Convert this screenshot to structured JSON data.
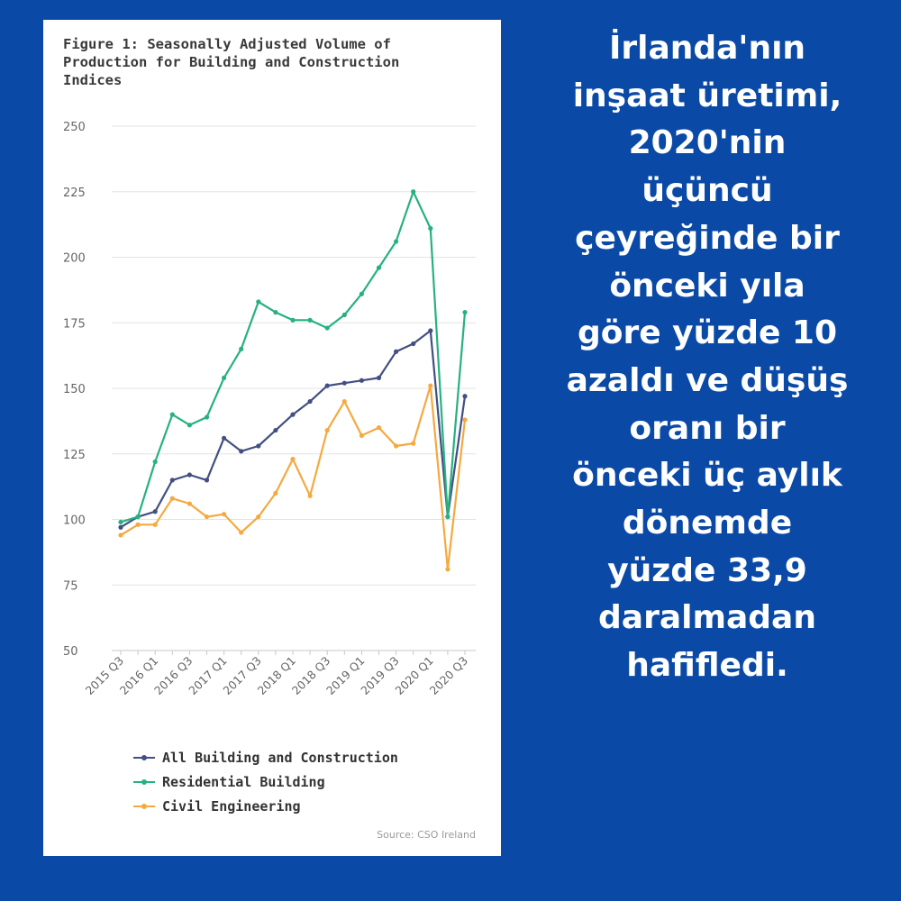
{
  "chart_data": {
    "type": "line",
    "title": "Figure 1: Seasonally Adjusted Volume of Production for Building and Construction Indices",
    "xlabel": "",
    "ylabel": "",
    "ylim": [
      50,
      250
    ],
    "yticks": [
      50,
      75,
      100,
      125,
      150,
      175,
      200,
      225,
      250
    ],
    "x": [
      "2015 Q3",
      "2015 Q4",
      "2016 Q1",
      "2016 Q2",
      "2016 Q3",
      "2016 Q4",
      "2017 Q1",
      "2017 Q2",
      "2017 Q3",
      "2017 Q4",
      "2018 Q1",
      "2018 Q2",
      "2018 Q3",
      "2018 Q4",
      "2019 Q1",
      "2019 Q2",
      "2019 Q3",
      "2019 Q4",
      "2020 Q1",
      "2020 Q2",
      "2020 Q3"
    ],
    "xtick_labels": [
      "2015 Q3",
      "2016 Q1",
      "2016 Q3",
      "2017 Q1",
      "2017 Q3",
      "2018 Q1",
      "2018 Q3",
      "2019 Q1",
      "2019 Q3",
      "2020 Q1",
      "2020 Q3"
    ],
    "grid": true,
    "legend": "bottom",
    "source": "Source: CSO Ireland",
    "series": [
      {
        "name": "All Building and Construction",
        "color": "#434f82",
        "values": [
          97,
          101,
          103,
          115,
          117,
          115,
          131,
          126,
          128,
          134,
          140,
          145,
          151,
          152,
          153,
          154,
          164,
          167,
          172,
          101,
          147
        ]
      },
      {
        "name": "Residential Building",
        "color": "#27b180",
        "values": [
          99,
          101,
          122,
          140,
          136,
          139,
          154,
          165,
          183,
          179,
          176,
          176,
          173,
          178,
          186,
          196,
          206,
          225,
          211,
          101,
          179
        ]
      },
      {
        "name": "Civil Engineering",
        "color": "#f5a940",
        "values": [
          94,
          98,
          98,
          108,
          106,
          101,
          102,
          95,
          101,
          110,
          123,
          109,
          134,
          145,
          132,
          135,
          128,
          129,
          151,
          81,
          138
        ]
      }
    ]
  },
  "caption_lines": [
    "İrlanda'nın",
    "inşaat üretimi,",
    "2020'nin",
    "üçüncü",
    "çeyreğinde bir",
    "önceki yıla",
    "göre yüzde 10",
    "azaldı ve düşüş",
    "oranı bir",
    "önceki üç aylık",
    "dönemde",
    "yüzde 33,9",
    "daralmadan",
    "hafifledi."
  ]
}
